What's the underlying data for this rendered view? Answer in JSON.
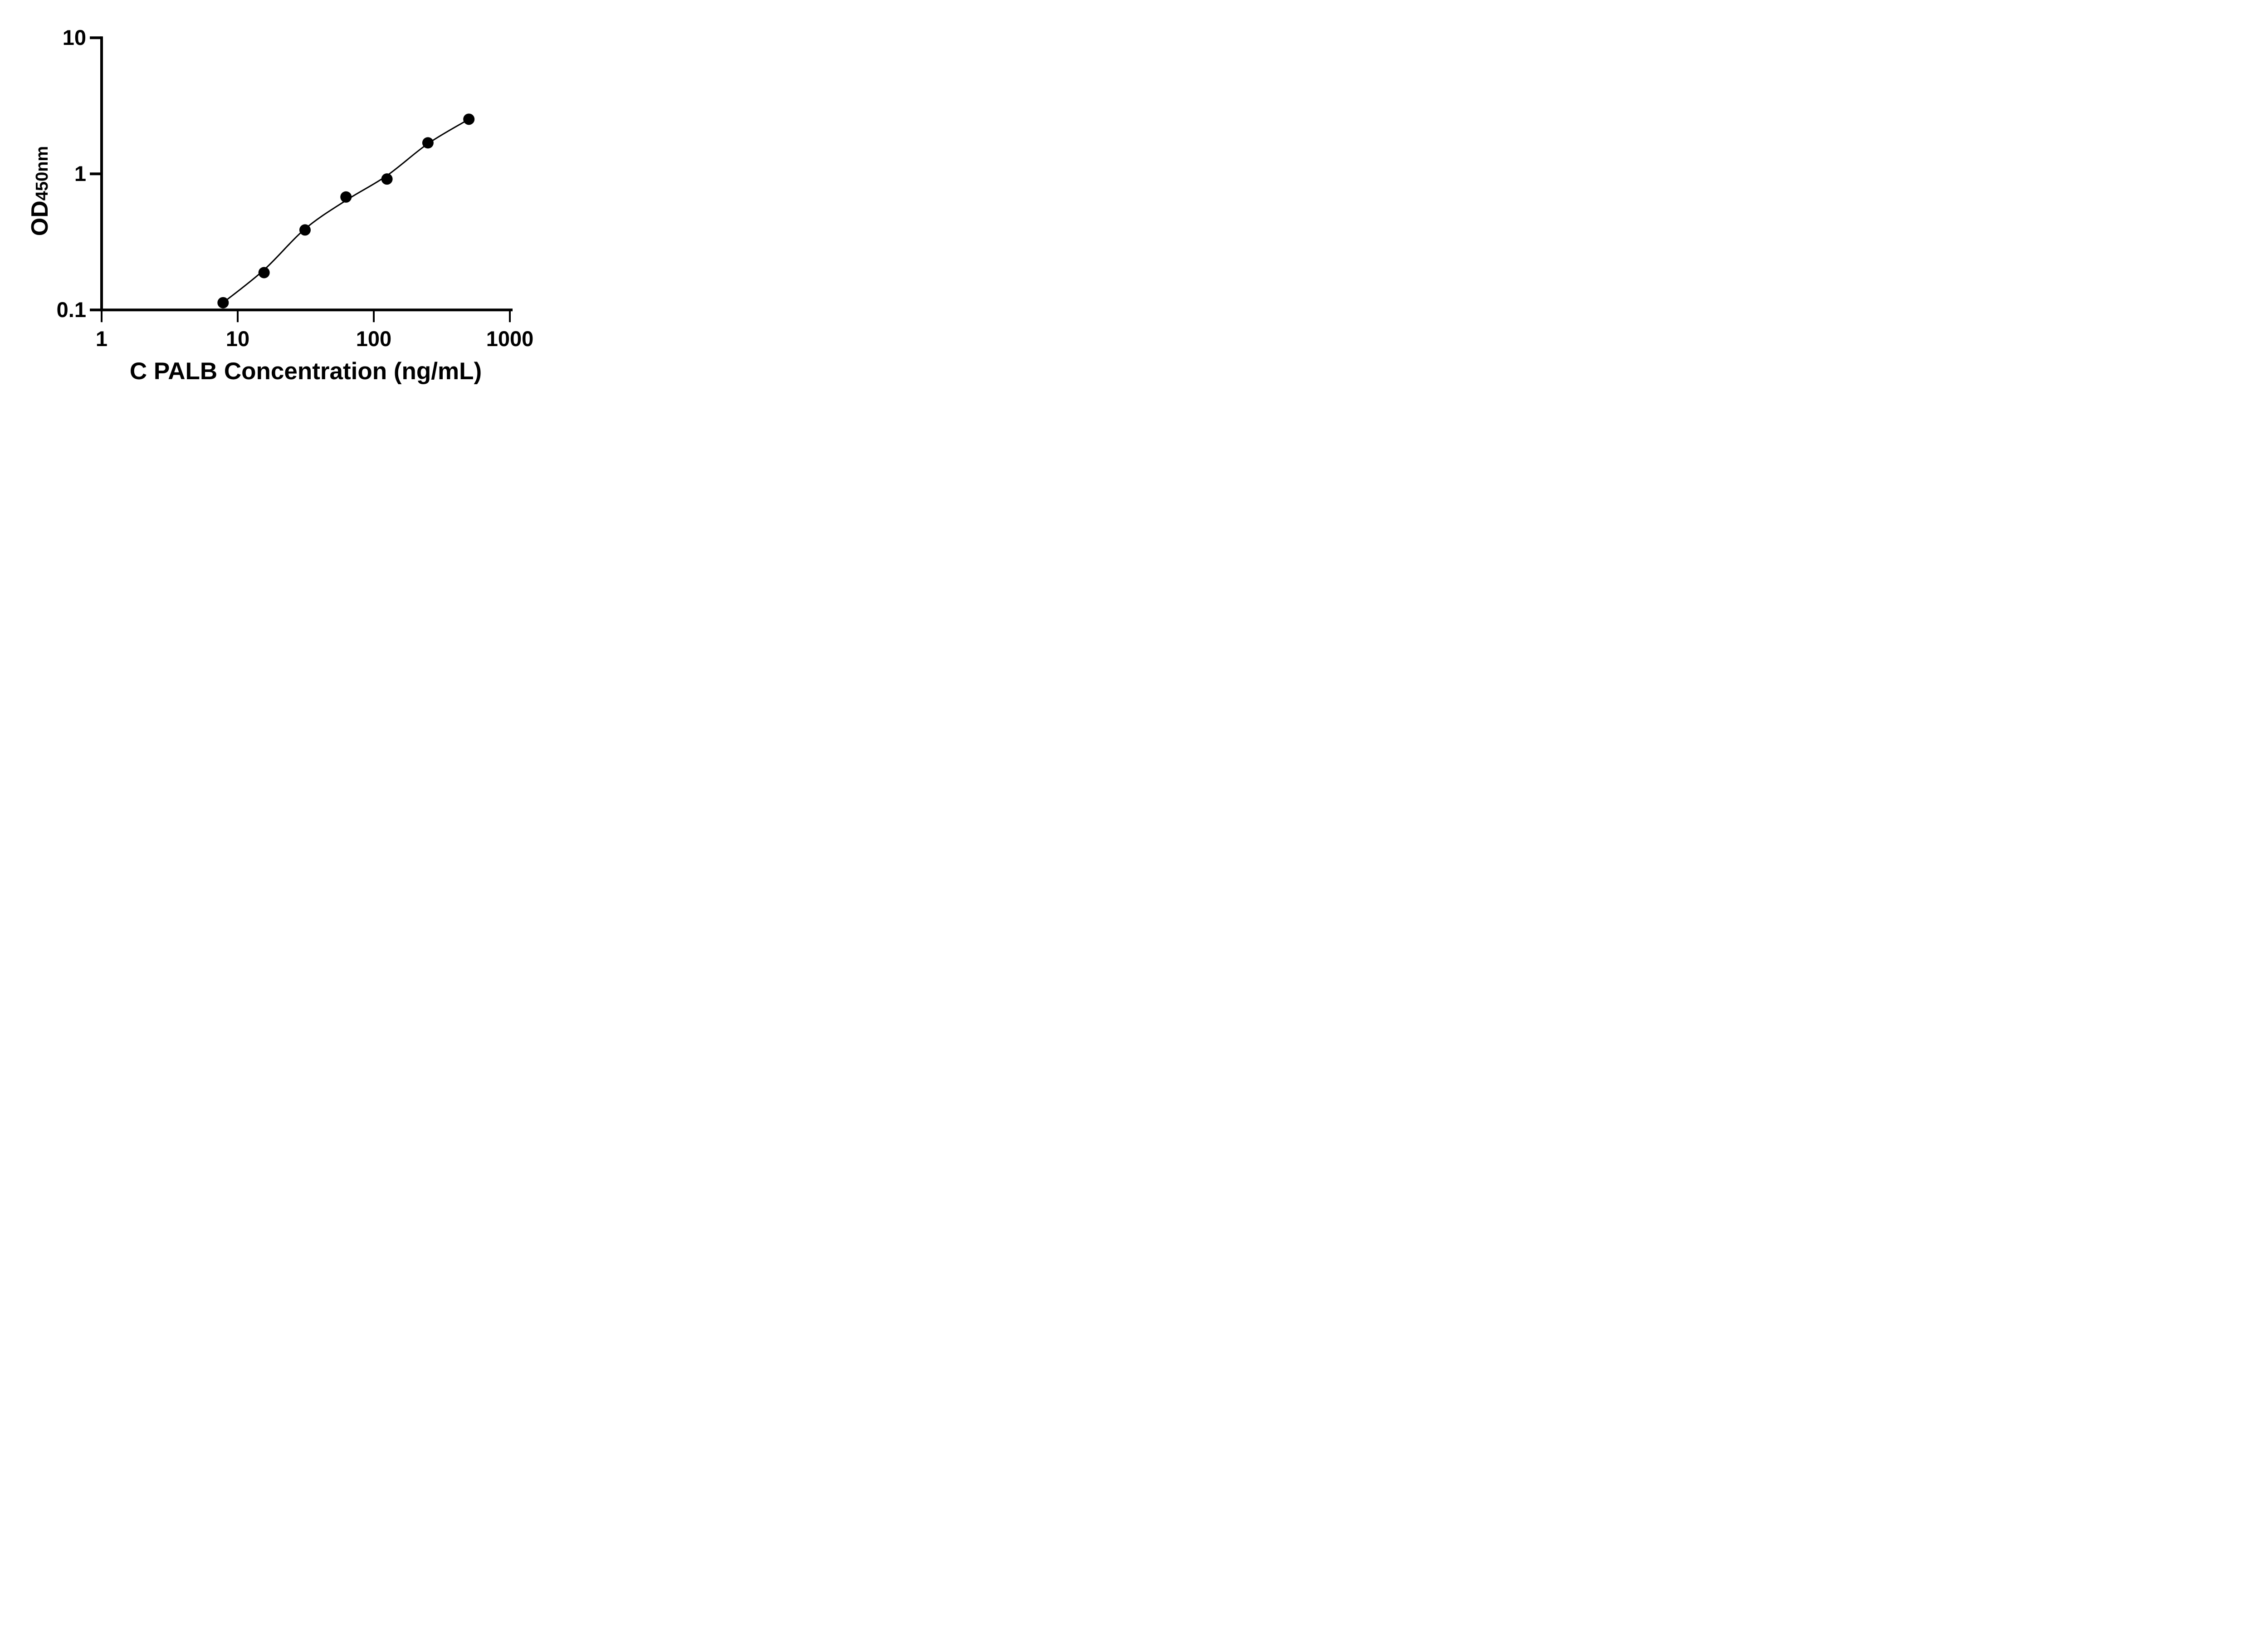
{
  "chart_data": {
    "type": "scatter",
    "title": "",
    "xlabel": "C PALB Concentration (ng/mL)",
    "ylabel": "OD450nm",
    "ylabel_main": "OD",
    "ylabel_sub": "450nm",
    "xscale": "log",
    "yscale": "log",
    "xlim": [
      1,
      1000
    ],
    "ylim": [
      0.1,
      10
    ],
    "grid": false,
    "legend": false,
    "x": [
      7.8125,
      15.625,
      31.25,
      62.5,
      125,
      250,
      500
    ],
    "y": [
      0.113,
      0.188,
      0.387,
      0.676,
      0.916,
      1.69,
      2.52
    ],
    "x_ticks": [
      {
        "value": 1,
        "label": "1"
      },
      {
        "value": 10,
        "label": "10"
      },
      {
        "value": 100,
        "label": "100"
      },
      {
        "value": 1000,
        "label": "1000"
      }
    ],
    "y_ticks": [
      {
        "value": 10,
        "label": "10"
      },
      {
        "value": 1,
        "label": "1"
      },
      {
        "value": 0.1,
        "label": "0.1"
      }
    ],
    "fit_line": {
      "description": "smooth fitted standard curve from first to last point",
      "points": [
        [
          7.8125,
          0.113
        ],
        [
          15.625,
          0.197
        ],
        [
          31.25,
          0.394
        ],
        [
          62.5,
          0.638
        ],
        [
          125,
          0.971
        ],
        [
          250,
          1.667
        ],
        [
          500,
          2.52
        ]
      ]
    },
    "colors": {
      "marker": "#000000",
      "line": "#000000",
      "axis": "#000000",
      "text": "#000000",
      "background": "#ffffff"
    },
    "marker_radius_px": 12.5
  }
}
